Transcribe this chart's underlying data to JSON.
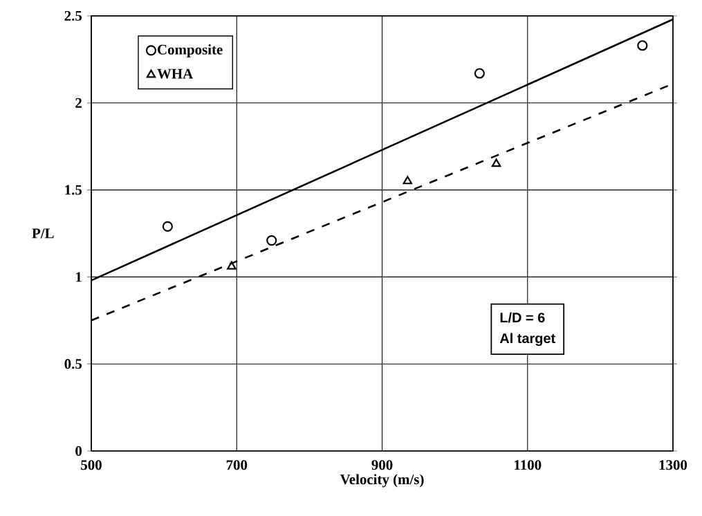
{
  "chart_data": {
    "type": "scatter",
    "xlabel": "Velocity (m/s)",
    "ylabel": "P/L",
    "xlim": [
      500,
      1300
    ],
    "ylim": [
      0,
      2.5
    ],
    "xticks": [
      500,
      700,
      900,
      1100,
      1300
    ],
    "yticks": [
      0,
      0.5,
      1,
      1.5,
      2,
      2.5
    ],
    "grid": true,
    "legend": "top left",
    "series": [
      {
        "name": "Composite",
        "color": "#000000",
        "marker": "circle",
        "x": [
          605,
          748,
          1034,
          1258
        ],
        "values": [
          1.29,
          1.21,
          2.17,
          2.33
        ]
      },
      {
        "name": "WHA",
        "color": "#000000",
        "marker": "triangle",
        "x": [
          693,
          935,
          1057
        ],
        "values": [
          1.06,
          1.55,
          1.65
        ]
      },
      {
        "type": "line",
        "color": "#000000",
        "line_style": "solid",
        "x": [
          500,
          1300
        ],
        "values": [
          0.98,
          2.48
        ]
      },
      {
        "type": "line",
        "color": "#000000",
        "line_style": "dashed",
        "x": [
          500,
          1300
        ],
        "values": [
          0.75,
          2.11
        ]
      }
    ],
    "annotations": [
      "L/D = 6",
      "Al target"
    ]
  }
}
